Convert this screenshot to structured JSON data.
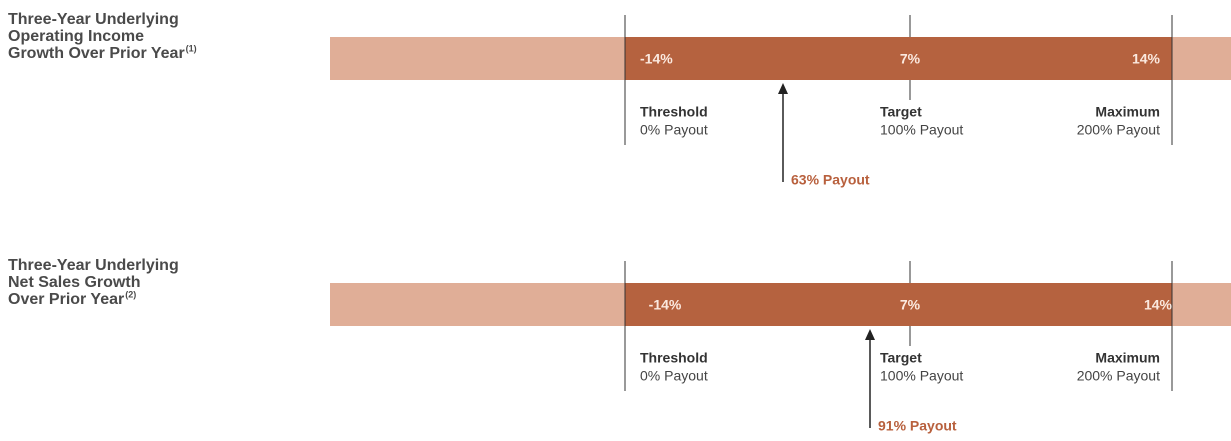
{
  "rows": [
    {
      "title": [
        "Three-Year Underlying",
        "Operating Income",
        "Growth Over Prior Year"
      ],
      "title_sup": "(1)",
      "scale": [
        "-14%",
        "7%",
        "14%"
      ],
      "levels": [
        {
          "name": "Threshold",
          "payout": "0% Payout"
        },
        {
          "name": "Target",
          "payout": "100% Payout"
        },
        {
          "name": "Maximum",
          "payout": "200% Payout"
        }
      ],
      "result": "63% Payout"
    },
    {
      "title": [
        "Three-Year Underlying",
        "Net Sales Growth",
        "Over Prior Year"
      ],
      "title_sup": "(2)",
      "scale": [
        "-14%",
        "7%",
        "14%"
      ],
      "levels": [
        {
          "name": "Threshold",
          "payout": "0% Payout"
        },
        {
          "name": "Target",
          "payout": "100% Payout"
        },
        {
          "name": "Maximum",
          "payout": "200% Payout"
        }
      ],
      "result": "91% Payout"
    }
  ]
}
